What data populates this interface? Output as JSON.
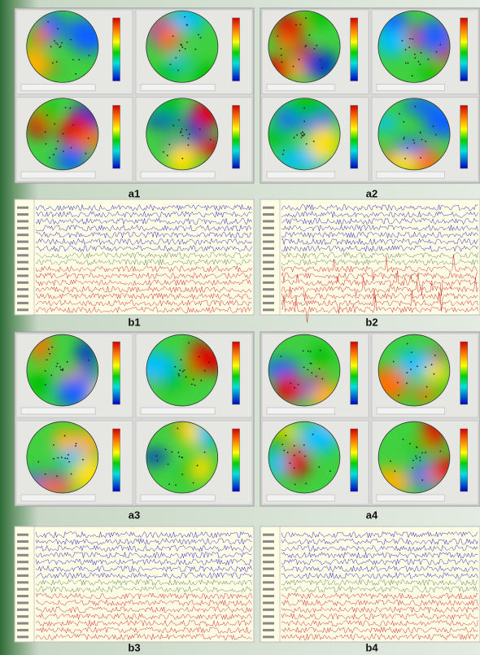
{
  "panels": [
    {
      "label": "a1"
    },
    {
      "label": "a2"
    },
    {
      "label": "b1"
    },
    {
      "label": "b2"
    },
    {
      "label": "a3"
    },
    {
      "label": "a4"
    },
    {
      "label": "b3"
    },
    {
      "label": "b4"
    }
  ]
}
